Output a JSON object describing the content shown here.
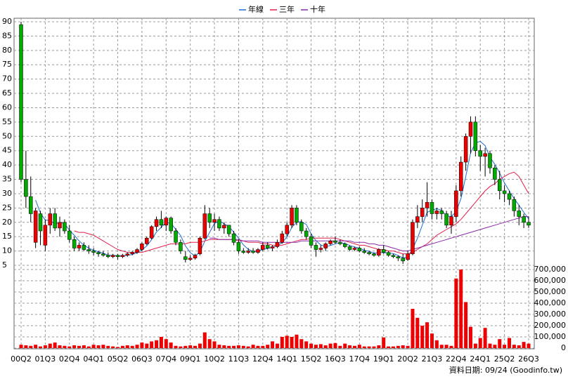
{
  "chart_data": {
    "type": "candlestick",
    "source": "資料日期: 09/24  (Goodinfo.tw)",
    "categories": [
      "00Q2",
      null,
      null,
      null,
      null,
      "01Q3",
      null,
      null,
      null,
      null,
      "02Q4",
      null,
      null,
      null,
      null,
      "04Q1",
      null,
      null,
      null,
      null,
      "05Q2",
      null,
      null,
      null,
      null,
      "06Q3",
      null,
      null,
      null,
      null,
      "07Q4",
      null,
      null,
      null,
      null,
      "09Q1",
      null,
      null,
      null,
      null,
      "10Q2",
      null,
      null,
      null,
      null,
      "11Q3",
      null,
      null,
      null,
      null,
      "12Q4",
      null,
      null,
      null,
      null,
      "14Q1",
      null,
      null,
      null,
      null,
      "15Q2",
      null,
      null,
      null,
      null,
      "16Q3",
      null,
      null,
      null,
      null,
      "17Q4",
      null,
      null,
      null,
      null,
      "19Q1",
      null,
      null,
      null,
      null,
      "20Q2",
      null,
      null,
      null,
      null,
      "21Q3",
      null,
      null,
      null,
      null,
      "22Q4",
      null,
      null,
      null,
      null,
      "24Q1",
      null,
      null,
      null,
      null,
      "25Q2",
      null,
      null,
      null,
      null,
      "26Q3"
    ],
    "ohlc": [
      [
        89,
        90,
        34,
        35
      ],
      [
        35,
        45,
        25,
        29
      ],
      [
        29,
        36,
        20,
        23
      ],
      [
        13,
        25,
        11,
        24
      ],
      [
        23,
        24,
        12,
        17
      ],
      [
        12,
        21,
        10,
        19
      ],
      [
        19,
        25,
        16,
        23
      ],
      [
        23,
        25,
        17,
        18
      ],
      [
        18,
        22,
        15,
        20
      ],
      [
        20,
        21,
        16,
        17
      ],
      [
        17,
        19,
        13,
        14
      ],
      [
        14,
        15,
        10,
        11
      ],
      [
        11,
        13,
        10,
        12
      ],
      [
        12,
        13,
        10,
        10.5
      ],
      [
        10.5,
        12,
        9,
        10
      ],
      [
        10,
        11,
        8.5,
        9.5
      ],
      [
        9.5,
        10,
        8,
        9
      ],
      [
        9,
        10,
        8,
        8.5
      ],
      [
        8.5,
        9.5,
        7.5,
        8
      ],
      [
        8,
        9,
        7.5,
        8.5
      ],
      [
        8.5,
        9,
        7,
        8
      ],
      [
        8,
        9,
        7.5,
        8.5
      ],
      [
        8.5,
        9.5,
        8,
        9
      ],
      [
        9,
        10,
        8.5,
        9.5
      ],
      [
        9.5,
        11,
        9,
        10.5
      ],
      [
        10.5,
        13,
        10,
        12.5
      ],
      [
        12.5,
        15,
        12,
        14.5
      ],
      [
        14.5,
        19,
        14,
        18.5
      ],
      [
        18.5,
        22,
        17,
        21
      ],
      [
        21,
        24,
        18,
        19
      ],
      [
        19,
        22,
        17,
        21.5
      ],
      [
        21.5,
        22,
        16,
        17
      ],
      [
        17,
        18,
        12,
        13
      ],
      [
        13,
        14,
        9,
        10
      ],
      [
        8,
        10,
        6,
        7
      ],
      [
        7,
        8.5,
        6.5,
        7.5
      ],
      [
        7.5,
        9,
        7,
        8.5
      ],
      [
        9,
        15,
        8.5,
        14.5
      ],
      [
        14.5,
        26,
        14,
        23
      ],
      [
        23,
        25,
        18,
        20
      ],
      [
        20,
        23,
        17,
        21
      ],
      [
        21,
        22,
        17,
        18
      ],
      [
        18,
        20,
        16,
        19
      ],
      [
        19,
        19,
        15,
        16
      ],
      [
        16,
        17,
        12,
        13
      ],
      [
        13,
        14,
        9,
        10
      ],
      [
        10,
        11,
        9,
        9.5
      ],
      [
        9.5,
        11,
        9,
        10
      ],
      [
        10,
        11,
        9,
        9.5
      ],
      [
        9.5,
        11,
        9,
        10.5
      ],
      [
        10.5,
        13,
        10,
        12
      ],
      [
        12,
        13,
        10.5,
        11
      ],
      [
        11,
        12,
        10,
        11.5
      ],
      [
        11.5,
        14,
        11,
        13
      ],
      [
        13,
        17,
        12.5,
        16
      ],
      [
        16,
        20,
        15,
        19
      ],
      [
        19,
        26,
        18,
        25
      ],
      [
        25,
        26,
        19,
        20
      ],
      [
        20,
        21,
        16,
        17
      ],
      [
        17,
        18,
        14,
        15
      ],
      [
        15,
        16,
        11,
        12
      ],
      [
        12,
        13,
        8,
        10.5
      ],
      [
        10.5,
        12,
        9.5,
        11
      ],
      [
        11,
        13,
        10,
        12.5
      ],
      [
        12.5,
        14,
        12,
        13.5
      ],
      [
        13.5,
        15,
        12.5,
        13
      ],
      [
        13,
        14,
        12,
        12.5
      ],
      [
        12.5,
        13,
        11,
        11.5
      ],
      [
        11.5,
        12,
        10,
        10.5
      ],
      [
        10.5,
        11.5,
        10,
        11
      ],
      [
        11,
        11.5,
        9.5,
        10
      ],
      [
        10,
        11,
        9,
        9.5
      ],
      [
        9.5,
        10,
        8.5,
        9
      ],
      [
        9,
        9.5,
        8,
        8.5
      ],
      [
        8.5,
        11,
        8,
        10.5
      ],
      [
        10.5,
        12,
        9,
        9.5
      ],
      [
        9.5,
        10,
        8,
        8.5
      ],
      [
        8.5,
        9,
        7.5,
        8
      ],
      [
        8,
        8.5,
        6.5,
        7.5
      ],
      [
        7.5,
        9,
        5.5,
        6.5
      ],
      [
        7,
        10,
        6.5,
        9
      ],
      [
        9,
        21,
        8.5,
        20
      ],
      [
        20,
        26,
        18,
        22
      ],
      [
        22,
        28,
        20,
        25
      ],
      [
        25,
        34,
        22,
        27
      ],
      [
        27,
        28,
        21,
        23
      ],
      [
        23,
        25,
        21,
        24
      ],
      [
        24,
        25,
        21,
        23
      ],
      [
        23,
        24,
        18,
        19
      ],
      [
        19,
        24,
        16,
        22
      ],
      [
        22,
        33,
        20,
        31
      ],
      [
        31,
        43,
        29,
        41
      ],
      [
        41,
        51,
        38,
        50
      ],
      [
        50,
        57,
        44,
        55
      ],
      [
        55,
        57,
        43,
        45
      ],
      [
        45,
        47,
        38,
        43
      ],
      [
        43,
        46,
        36,
        44
      ],
      [
        44,
        45,
        37,
        39
      ],
      [
        39,
        40,
        33,
        35
      ],
      [
        35,
        38,
        28,
        31
      ],
      [
        31,
        33,
        27,
        30
      ],
      [
        30,
        31,
        26,
        28
      ],
      [
        28,
        29,
        22,
        24
      ],
      [
        24,
        26,
        19,
        22
      ],
      [
        22,
        23,
        18,
        20
      ],
      [
        20,
        22,
        18,
        19
      ]
    ],
    "up_color": "#ee0000",
    "down_color": "#00aa00",
    "ylim": [
      5,
      90
    ],
    "yticks": [
      5,
      10,
      15,
      20,
      25,
      30,
      35,
      40,
      45,
      50,
      55,
      60,
      65,
      70,
      75,
      80,
      85,
      90
    ],
    "grid": true,
    "series": [
      {
        "name": "年線",
        "color": "#1f6fd0",
        "values": [
          null,
          null,
          null,
          27.75,
          23.25,
          20.75,
          20.75,
          19.25,
          20,
          19.5,
          17.25,
          15.5,
          13.5,
          12,
          11,
          10.25,
          9.75,
          9.25,
          8.5,
          8.5,
          8.25,
          8.25,
          8.5,
          8.75,
          9.4,
          10.4,
          11.75,
          14,
          16.6,
          18.25,
          20,
          19.6,
          17.6,
          15.4,
          11.75,
          9.4,
          8.25,
          9.6,
          13.4,
          16.5,
          19.6,
          20.5,
          19.5,
          18.5,
          16.5,
          14.5,
          12.1,
          10.6,
          9.75,
          9.9,
          10.5,
          10.9,
          11.25,
          11.9,
          12.9,
          14.9,
          18.25,
          20,
          20.25,
          19.25,
          16,
          13.6,
          12.1,
          11.5,
          11.9,
          12.5,
          12.9,
          12.6,
          11.9,
          11.4,
          11,
          10.25,
          9.9,
          9.25,
          9.4,
          9.4,
          9.25,
          9.1,
          8.4,
          7.6,
          7.75,
          10.75,
          14.4,
          19,
          23.5,
          24.25,
          24.75,
          24.25,
          22.25,
          22,
          23.75,
          28.25,
          36,
          44.25,
          47.75,
          48.25,
          46.75,
          42.75,
          40.25,
          37.25,
          33.75,
          31,
          28.25,
          26,
          23.5,
          21.25
        ]
      },
      {
        "name": "三年",
        "color": "#e0204a",
        "values": [
          null,
          null,
          null,
          null,
          null,
          null,
          null,
          null,
          null,
          null,
          null,
          17,
          16.5,
          16.5,
          16,
          15.5,
          14.5,
          13.5,
          12.5,
          11.5,
          10.5,
          10,
          9.5,
          9.5,
          9.5,
          9.5,
          10,
          10.5,
          11,
          11.5,
          12,
          12.5,
          12.5,
          12.5,
          12.5,
          13,
          13,
          13,
          13.5,
          14,
          14,
          14,
          14,
          14,
          14,
          13.5,
          13.5,
          13,
          13,
          13,
          12.5,
          12.5,
          12,
          12,
          12,
          12.5,
          13,
          13.5,
          14,
          14,
          14.5,
          14.5,
          14.5,
          14.5,
          14.5,
          14.5,
          14,
          13.5,
          13,
          12.5,
          12,
          12,
          11.5,
          11,
          10.5,
          10.5,
          10,
          10,
          9.5,
          9,
          9,
          9.5,
          10.5,
          11.5,
          12.5,
          14,
          15.5,
          16.5,
          17.5,
          18.5,
          19.5,
          21,
          23,
          25,
          27,
          29,
          31,
          32.5,
          33.5,
          35,
          36,
          37,
          37.5,
          36,
          33,
          30
        ]
      },
      {
        "name": "十年",
        "color": "#8a2aa8",
        "values": [
          null,
          null,
          null,
          null,
          null,
          null,
          null,
          null,
          null,
          null,
          null,
          null,
          null,
          null,
          null,
          null,
          null,
          null,
          null,
          null,
          null,
          null,
          null,
          null,
          null,
          null,
          null,
          null,
          null,
          null,
          null,
          null,
          null,
          null,
          null,
          null,
          null,
          null,
          null,
          14.5,
          14.5,
          14,
          14,
          14,
          14,
          14,
          13.5,
          13.5,
          13.5,
          13.5,
          13,
          13,
          13,
          13,
          13,
          13,
          13,
          13,
          13.5,
          13.5,
          13.5,
          13.5,
          13.5,
          13.5,
          13.5,
          13.5,
          13.5,
          13.5,
          13.5,
          13,
          13,
          13,
          12.5,
          12.5,
          12,
          12,
          11.5,
          11,
          10.5,
          10,
          10,
          10.5,
          11,
          11.5,
          12,
          12.5,
          13,
          13.5,
          14,
          14.5,
          15,
          15.5,
          16,
          16.5,
          17,
          17.5,
          18,
          18.5,
          19,
          19.5,
          20,
          20.5,
          21,
          21.5,
          22,
          22
        ]
      }
    ],
    "volume": {
      "color": "#ee0000",
      "values": [
        30000,
        25000,
        20000,
        30000,
        15000,
        25000,
        40000,
        50000,
        25000,
        20000,
        15000,
        25000,
        20000,
        25000,
        15000,
        30000,
        25000,
        30000,
        20000,
        15000,
        10000,
        20000,
        25000,
        20000,
        30000,
        50000,
        40000,
        60000,
        70000,
        100000,
        80000,
        50000,
        20000,
        15000,
        20000,
        25000,
        20000,
        40000,
        140000,
        80000,
        60000,
        30000,
        25000,
        20000,
        20000,
        25000,
        20000,
        15000,
        30000,
        20000,
        20000,
        30000,
        60000,
        40000,
        100000,
        110000,
        100000,
        120000,
        80000,
        60000,
        40000,
        30000,
        35000,
        25000,
        40000,
        45000,
        20000,
        40000,
        25000,
        20000,
        30000,
        15000,
        15000,
        15000,
        25000,
        95000,
        15000,
        15000,
        20000,
        25000,
        20000,
        350000,
        270000,
        200000,
        230000,
        130000,
        70000,
        30000,
        30000,
        20000,
        620000,
        700000,
        410000,
        190000,
        40000,
        90000,
        180000,
        40000,
        30000,
        80000,
        30000,
        90000,
        30000,
        25000,
        55000,
        40000
      ],
      "ylim": [
        0,
        700000
      ],
      "yticks": [
        0,
        {
          "value": 100000,
          "label": "100,000"
        },
        {
          "value": 200000,
          "label": "200,000"
        },
        {
          "value": 300000,
          "label": "300,000"
        },
        {
          "value": 400000,
          "label": "400,000"
        },
        {
          "value": 500000,
          "label": "500,000"
        },
        {
          "value": 600000,
          "label": "600,000"
        },
        {
          "value": 700000,
          "label": "700,000"
        }
      ]
    }
  }
}
